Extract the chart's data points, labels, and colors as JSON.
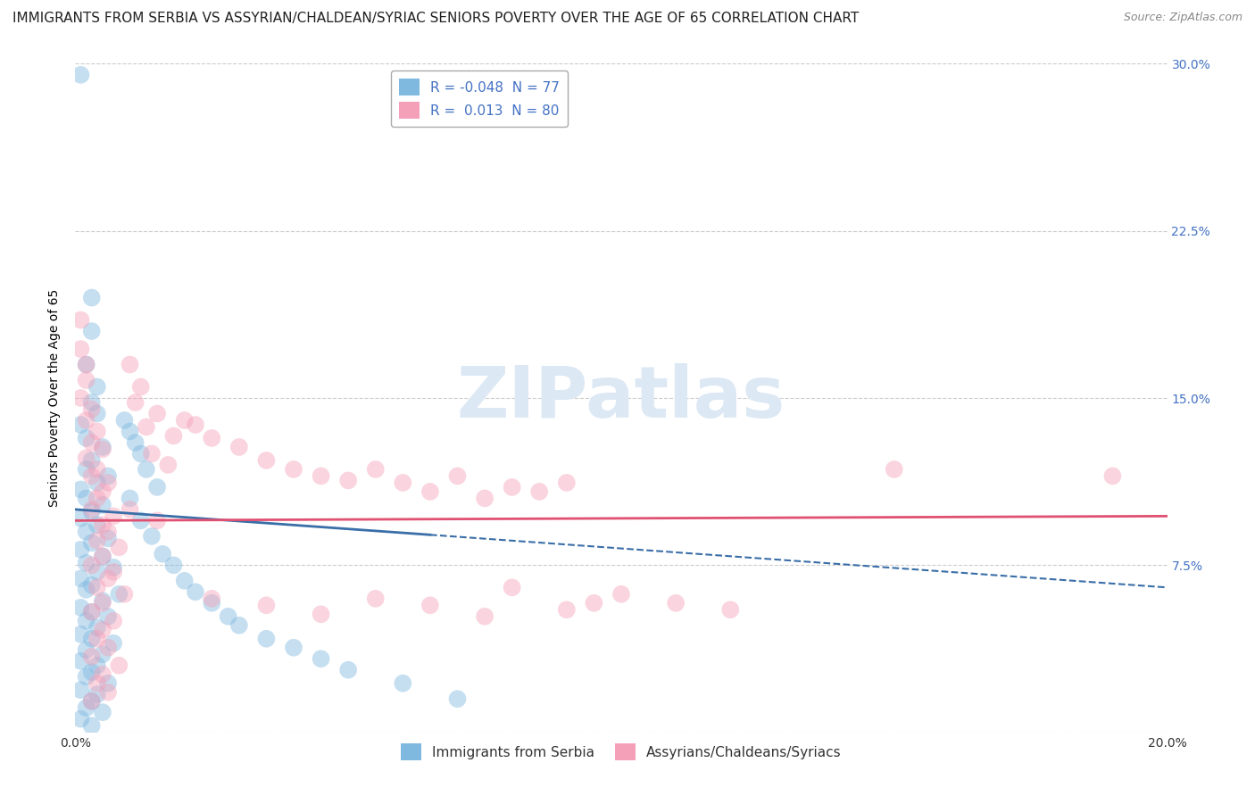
{
  "title": "IMMIGRANTS FROM SERBIA VS ASSYRIAN/CHALDEAN/SYRIAC SENIORS POVERTY OVER THE AGE OF 65 CORRELATION CHART",
  "source": "Source: ZipAtlas.com",
  "ylabel": "Seniors Poverty Over the Age of 65",
  "xlim": [
    0.0,
    0.2
  ],
  "ylim": [
    0.0,
    0.3
  ],
  "xticks": [
    0.0,
    0.05,
    0.1,
    0.15,
    0.2
  ],
  "yticks": [
    0.0,
    0.075,
    0.15,
    0.225,
    0.3
  ],
  "watermark": "ZIPatlas",
  "serbia_color": "#7fb9e0",
  "assyrian_color": "#f4a0b8",
  "serbia_line_color": "#3a6ea8",
  "assyrian_line_color": "#e05070",
  "serbia_R": -0.048,
  "serbia_N": 77,
  "assyrian_R": 0.013,
  "assyrian_N": 80,
  "serbia_label": "Immigrants from Serbia",
  "assyrian_label": "Assyrians/Chaldeans/Syriacs",
  "serbia_scatter": [
    [
      0.001,
      0.295
    ],
    [
      0.003,
      0.195
    ],
    [
      0.003,
      0.18
    ],
    [
      0.002,
      0.165
    ],
    [
      0.004,
      0.155
    ],
    [
      0.003,
      0.148
    ],
    [
      0.004,
      0.143
    ],
    [
      0.001,
      0.138
    ],
    [
      0.002,
      0.132
    ],
    [
      0.005,
      0.128
    ],
    [
      0.003,
      0.122
    ],
    [
      0.002,
      0.118
    ],
    [
      0.006,
      0.115
    ],
    [
      0.004,
      0.112
    ],
    [
      0.001,
      0.109
    ],
    [
      0.002,
      0.105
    ],
    [
      0.005,
      0.102
    ],
    [
      0.003,
      0.099
    ],
    [
      0.001,
      0.096
    ],
    [
      0.004,
      0.093
    ],
    [
      0.002,
      0.09
    ],
    [
      0.006,
      0.087
    ],
    [
      0.003,
      0.085
    ],
    [
      0.001,
      0.082
    ],
    [
      0.005,
      0.079
    ],
    [
      0.002,
      0.076
    ],
    [
      0.007,
      0.074
    ],
    [
      0.004,
      0.072
    ],
    [
      0.001,
      0.069
    ],
    [
      0.003,
      0.066
    ],
    [
      0.002,
      0.064
    ],
    [
      0.008,
      0.062
    ],
    [
      0.005,
      0.059
    ],
    [
      0.001,
      0.056
    ],
    [
      0.003,
      0.054
    ],
    [
      0.006,
      0.052
    ],
    [
      0.002,
      0.05
    ],
    [
      0.004,
      0.047
    ],
    [
      0.001,
      0.044
    ],
    [
      0.003,
      0.042
    ],
    [
      0.007,
      0.04
    ],
    [
      0.002,
      0.037
    ],
    [
      0.005,
      0.035
    ],
    [
      0.001,
      0.032
    ],
    [
      0.004,
      0.03
    ],
    [
      0.003,
      0.027
    ],
    [
      0.002,
      0.025
    ],
    [
      0.006,
      0.022
    ],
    [
      0.001,
      0.019
    ],
    [
      0.004,
      0.017
    ],
    [
      0.003,
      0.014
    ],
    [
      0.002,
      0.011
    ],
    [
      0.005,
      0.009
    ],
    [
      0.001,
      0.006
    ],
    [
      0.003,
      0.003
    ],
    [
      0.009,
      0.14
    ],
    [
      0.01,
      0.135
    ],
    [
      0.011,
      0.13
    ],
    [
      0.012,
      0.125
    ],
    [
      0.013,
      0.118
    ],
    [
      0.015,
      0.11
    ],
    [
      0.01,
      0.105
    ],
    [
      0.012,
      0.095
    ],
    [
      0.014,
      0.088
    ],
    [
      0.016,
      0.08
    ],
    [
      0.018,
      0.075
    ],
    [
      0.02,
      0.068
    ],
    [
      0.022,
      0.063
    ],
    [
      0.025,
      0.058
    ],
    [
      0.028,
      0.052
    ],
    [
      0.03,
      0.048
    ],
    [
      0.035,
      0.042
    ],
    [
      0.04,
      0.038
    ],
    [
      0.045,
      0.033
    ],
    [
      0.05,
      0.028
    ],
    [
      0.06,
      0.022
    ],
    [
      0.07,
      0.015
    ]
  ],
  "assyrian_scatter": [
    [
      0.001,
      0.185
    ],
    [
      0.001,
      0.172
    ],
    [
      0.002,
      0.165
    ],
    [
      0.002,
      0.158
    ],
    [
      0.001,
      0.15
    ],
    [
      0.003,
      0.145
    ],
    [
      0.002,
      0.14
    ],
    [
      0.004,
      0.135
    ],
    [
      0.003,
      0.13
    ],
    [
      0.005,
      0.127
    ],
    [
      0.002,
      0.123
    ],
    [
      0.004,
      0.118
    ],
    [
      0.003,
      0.115
    ],
    [
      0.006,
      0.112
    ],
    [
      0.005,
      0.108
    ],
    [
      0.004,
      0.105
    ],
    [
      0.003,
      0.1
    ],
    [
      0.007,
      0.097
    ],
    [
      0.005,
      0.093
    ],
    [
      0.006,
      0.09
    ],
    [
      0.004,
      0.086
    ],
    [
      0.008,
      0.083
    ],
    [
      0.005,
      0.079
    ],
    [
      0.003,
      0.075
    ],
    [
      0.007,
      0.072
    ],
    [
      0.006,
      0.069
    ],
    [
      0.004,
      0.065
    ],
    [
      0.009,
      0.062
    ],
    [
      0.005,
      0.058
    ],
    [
      0.003,
      0.054
    ],
    [
      0.007,
      0.05
    ],
    [
      0.005,
      0.046
    ],
    [
      0.004,
      0.042
    ],
    [
      0.006,
      0.038
    ],
    [
      0.003,
      0.034
    ],
    [
      0.008,
      0.03
    ],
    [
      0.005,
      0.026
    ],
    [
      0.004,
      0.022
    ],
    [
      0.006,
      0.018
    ],
    [
      0.003,
      0.014
    ],
    [
      0.01,
      0.165
    ],
    [
      0.012,
      0.155
    ],
    [
      0.011,
      0.148
    ],
    [
      0.015,
      0.143
    ],
    [
      0.013,
      0.137
    ],
    [
      0.018,
      0.133
    ],
    [
      0.02,
      0.14
    ],
    [
      0.022,
      0.138
    ],
    [
      0.025,
      0.132
    ],
    [
      0.014,
      0.125
    ],
    [
      0.017,
      0.12
    ],
    [
      0.03,
      0.128
    ],
    [
      0.035,
      0.122
    ],
    [
      0.04,
      0.118
    ],
    [
      0.045,
      0.115
    ],
    [
      0.05,
      0.113
    ],
    [
      0.055,
      0.118
    ],
    [
      0.06,
      0.112
    ],
    [
      0.065,
      0.108
    ],
    [
      0.07,
      0.115
    ],
    [
      0.075,
      0.105
    ],
    [
      0.08,
      0.11
    ],
    [
      0.085,
      0.108
    ],
    [
      0.09,
      0.112
    ],
    [
      0.095,
      0.058
    ],
    [
      0.1,
      0.062
    ],
    [
      0.11,
      0.058
    ],
    [
      0.12,
      0.055
    ],
    [
      0.025,
      0.06
    ],
    [
      0.035,
      0.057
    ],
    [
      0.045,
      0.053
    ],
    [
      0.055,
      0.06
    ],
    [
      0.065,
      0.057
    ],
    [
      0.075,
      0.052
    ],
    [
      0.08,
      0.065
    ],
    [
      0.09,
      0.055
    ],
    [
      0.15,
      0.118
    ],
    [
      0.19,
      0.115
    ],
    [
      0.01,
      0.1
    ],
    [
      0.015,
      0.095
    ]
  ],
  "background_color": "#ffffff",
  "grid_color": "#cccccc",
  "title_fontsize": 11,
  "axis_label_fontsize": 10,
  "tick_fontsize": 10,
  "legend_fontsize": 11,
  "scatter_size": 200,
  "scatter_alpha": 0.45
}
